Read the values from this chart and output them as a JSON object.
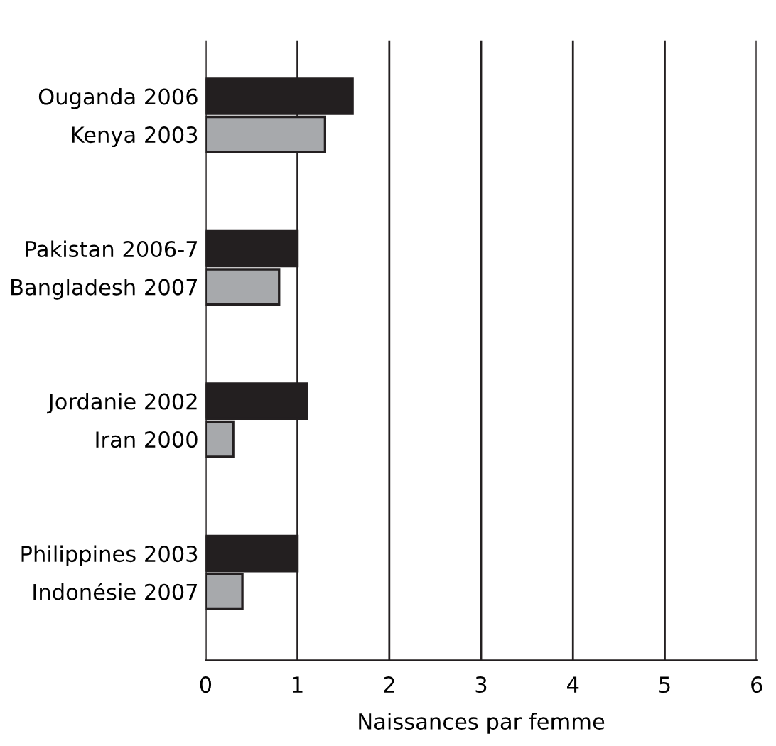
{
  "chart_data": {
    "type": "bar",
    "orientation": "horizontal",
    "xlabel": "Naissances par femme",
    "categories": [
      "Ouganda 2006",
      "Kenya 2003",
      null,
      null,
      "Pakistan 2006-7",
      "Bangladesh 2007",
      null,
      null,
      "Jordanie 2002",
      "Iran 2000",
      null,
      null,
      "Philippines 2003",
      "Indonésie 2007"
    ],
    "values": [
      1.6,
      1.3,
      null,
      null,
      1.0,
      0.8,
      null,
      null,
      1.1,
      0.3,
      null,
      null,
      1.0,
      0.4
    ],
    "colors": [
      "#231f20",
      "#a7a9ac",
      null,
      null,
      "#231f20",
      "#a7a9ac",
      null,
      null,
      "#231f20",
      "#a7a9ac",
      null,
      null,
      "#231f20",
      "#a7a9ac"
    ],
    "xlim": [
      0,
      6
    ],
    "xticks": [
      0,
      1,
      2,
      3,
      4,
      5,
      6
    ],
    "grid": "x"
  }
}
